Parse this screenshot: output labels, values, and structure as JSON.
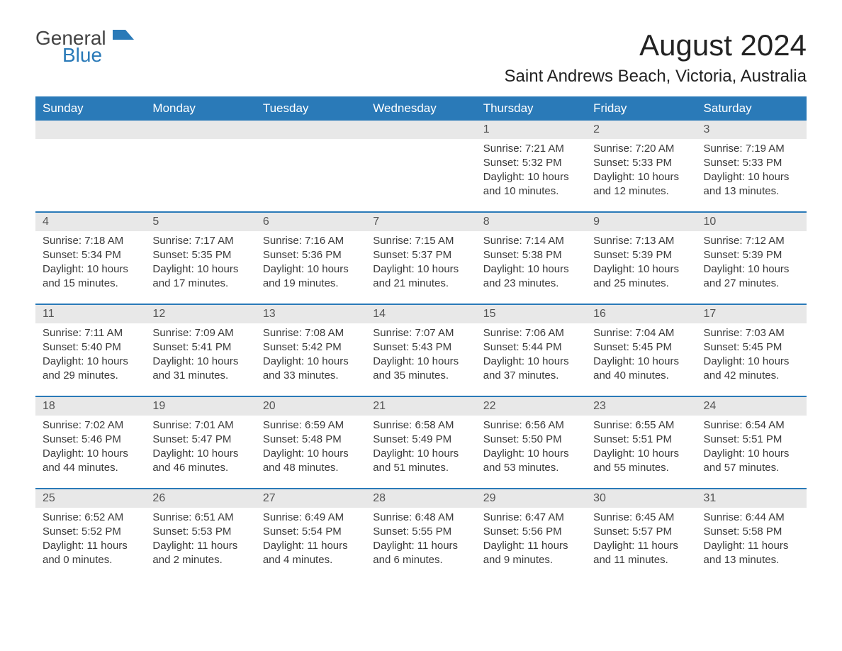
{
  "logo": {
    "general": "General",
    "blue": "Blue"
  },
  "title": "August 2024",
  "location": "Saint Andrews Beach, Victoria, Australia",
  "colors": {
    "header_bg": "#2a7ab8",
    "header_text": "#ffffff",
    "daynum_bg": "#e8e8e8",
    "daynum_text": "#555555",
    "body_text": "#3a3a3a",
    "week_border": "#2a7ab8",
    "page_bg": "#ffffff"
  },
  "weekdays": [
    "Sunday",
    "Monday",
    "Tuesday",
    "Wednesday",
    "Thursday",
    "Friday",
    "Saturday"
  ],
  "weeks": [
    [
      {
        "day": "",
        "sunrise": "",
        "sunset": "",
        "daylight": ""
      },
      {
        "day": "",
        "sunrise": "",
        "sunset": "",
        "daylight": ""
      },
      {
        "day": "",
        "sunrise": "",
        "sunset": "",
        "daylight": ""
      },
      {
        "day": "",
        "sunrise": "",
        "sunset": "",
        "daylight": ""
      },
      {
        "day": "1",
        "sunrise": "Sunrise: 7:21 AM",
        "sunset": "Sunset: 5:32 PM",
        "daylight": "Daylight: 10 hours and 10 minutes."
      },
      {
        "day": "2",
        "sunrise": "Sunrise: 7:20 AM",
        "sunset": "Sunset: 5:33 PM",
        "daylight": "Daylight: 10 hours and 12 minutes."
      },
      {
        "day": "3",
        "sunrise": "Sunrise: 7:19 AM",
        "sunset": "Sunset: 5:33 PM",
        "daylight": "Daylight: 10 hours and 13 minutes."
      }
    ],
    [
      {
        "day": "4",
        "sunrise": "Sunrise: 7:18 AM",
        "sunset": "Sunset: 5:34 PM",
        "daylight": "Daylight: 10 hours and 15 minutes."
      },
      {
        "day": "5",
        "sunrise": "Sunrise: 7:17 AM",
        "sunset": "Sunset: 5:35 PM",
        "daylight": "Daylight: 10 hours and 17 minutes."
      },
      {
        "day": "6",
        "sunrise": "Sunrise: 7:16 AM",
        "sunset": "Sunset: 5:36 PM",
        "daylight": "Daylight: 10 hours and 19 minutes."
      },
      {
        "day": "7",
        "sunrise": "Sunrise: 7:15 AM",
        "sunset": "Sunset: 5:37 PM",
        "daylight": "Daylight: 10 hours and 21 minutes."
      },
      {
        "day": "8",
        "sunrise": "Sunrise: 7:14 AM",
        "sunset": "Sunset: 5:38 PM",
        "daylight": "Daylight: 10 hours and 23 minutes."
      },
      {
        "day": "9",
        "sunrise": "Sunrise: 7:13 AM",
        "sunset": "Sunset: 5:39 PM",
        "daylight": "Daylight: 10 hours and 25 minutes."
      },
      {
        "day": "10",
        "sunrise": "Sunrise: 7:12 AM",
        "sunset": "Sunset: 5:39 PM",
        "daylight": "Daylight: 10 hours and 27 minutes."
      }
    ],
    [
      {
        "day": "11",
        "sunrise": "Sunrise: 7:11 AM",
        "sunset": "Sunset: 5:40 PM",
        "daylight": "Daylight: 10 hours and 29 minutes."
      },
      {
        "day": "12",
        "sunrise": "Sunrise: 7:09 AM",
        "sunset": "Sunset: 5:41 PM",
        "daylight": "Daylight: 10 hours and 31 minutes."
      },
      {
        "day": "13",
        "sunrise": "Sunrise: 7:08 AM",
        "sunset": "Sunset: 5:42 PM",
        "daylight": "Daylight: 10 hours and 33 minutes."
      },
      {
        "day": "14",
        "sunrise": "Sunrise: 7:07 AM",
        "sunset": "Sunset: 5:43 PM",
        "daylight": "Daylight: 10 hours and 35 minutes."
      },
      {
        "day": "15",
        "sunrise": "Sunrise: 7:06 AM",
        "sunset": "Sunset: 5:44 PM",
        "daylight": "Daylight: 10 hours and 37 minutes."
      },
      {
        "day": "16",
        "sunrise": "Sunrise: 7:04 AM",
        "sunset": "Sunset: 5:45 PM",
        "daylight": "Daylight: 10 hours and 40 minutes."
      },
      {
        "day": "17",
        "sunrise": "Sunrise: 7:03 AM",
        "sunset": "Sunset: 5:45 PM",
        "daylight": "Daylight: 10 hours and 42 minutes."
      }
    ],
    [
      {
        "day": "18",
        "sunrise": "Sunrise: 7:02 AM",
        "sunset": "Sunset: 5:46 PM",
        "daylight": "Daylight: 10 hours and 44 minutes."
      },
      {
        "day": "19",
        "sunrise": "Sunrise: 7:01 AM",
        "sunset": "Sunset: 5:47 PM",
        "daylight": "Daylight: 10 hours and 46 minutes."
      },
      {
        "day": "20",
        "sunrise": "Sunrise: 6:59 AM",
        "sunset": "Sunset: 5:48 PM",
        "daylight": "Daylight: 10 hours and 48 minutes."
      },
      {
        "day": "21",
        "sunrise": "Sunrise: 6:58 AM",
        "sunset": "Sunset: 5:49 PM",
        "daylight": "Daylight: 10 hours and 51 minutes."
      },
      {
        "day": "22",
        "sunrise": "Sunrise: 6:56 AM",
        "sunset": "Sunset: 5:50 PM",
        "daylight": "Daylight: 10 hours and 53 minutes."
      },
      {
        "day": "23",
        "sunrise": "Sunrise: 6:55 AM",
        "sunset": "Sunset: 5:51 PM",
        "daylight": "Daylight: 10 hours and 55 minutes."
      },
      {
        "day": "24",
        "sunrise": "Sunrise: 6:54 AM",
        "sunset": "Sunset: 5:51 PM",
        "daylight": "Daylight: 10 hours and 57 minutes."
      }
    ],
    [
      {
        "day": "25",
        "sunrise": "Sunrise: 6:52 AM",
        "sunset": "Sunset: 5:52 PM",
        "daylight": "Daylight: 11 hours and 0 minutes."
      },
      {
        "day": "26",
        "sunrise": "Sunrise: 6:51 AM",
        "sunset": "Sunset: 5:53 PM",
        "daylight": "Daylight: 11 hours and 2 minutes."
      },
      {
        "day": "27",
        "sunrise": "Sunrise: 6:49 AM",
        "sunset": "Sunset: 5:54 PM",
        "daylight": "Daylight: 11 hours and 4 minutes."
      },
      {
        "day": "28",
        "sunrise": "Sunrise: 6:48 AM",
        "sunset": "Sunset: 5:55 PM",
        "daylight": "Daylight: 11 hours and 6 minutes."
      },
      {
        "day": "29",
        "sunrise": "Sunrise: 6:47 AM",
        "sunset": "Sunset: 5:56 PM",
        "daylight": "Daylight: 11 hours and 9 minutes."
      },
      {
        "day": "30",
        "sunrise": "Sunrise: 6:45 AM",
        "sunset": "Sunset: 5:57 PM",
        "daylight": "Daylight: 11 hours and 11 minutes."
      },
      {
        "day": "31",
        "sunrise": "Sunrise: 6:44 AM",
        "sunset": "Sunset: 5:58 PM",
        "daylight": "Daylight: 11 hours and 13 minutes."
      }
    ]
  ]
}
